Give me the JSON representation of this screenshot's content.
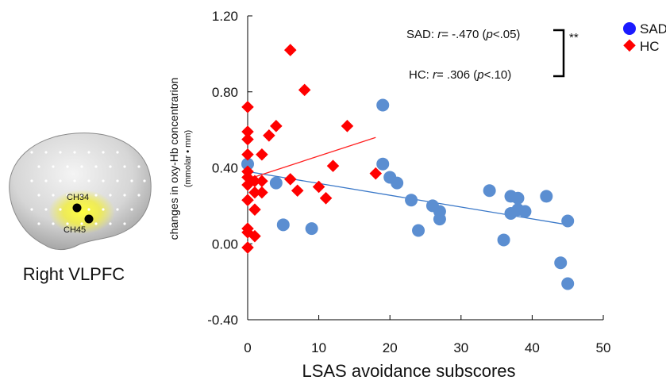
{
  "brain": {
    "channel_a": "CH34",
    "channel_b": "CH45",
    "caption": "Right VLPFC"
  },
  "chart_data": {
    "type": "scatter",
    "xlabel": "LSAS avoidance subscores",
    "ylabel": "changes in oxy-Hb concentrarion",
    "ylabel_unit": "(mmolar • mm)",
    "xlim": [
      0,
      50
    ],
    "ylim": [
      -0.4,
      1.2
    ],
    "xticks": [
      "0",
      "10",
      "20",
      "30",
      "40",
      "50"
    ],
    "yticks": [
      "1.20",
      "0.80",
      "0.40",
      "0.00",
      "-0.40"
    ],
    "ytick_values": [
      1.2,
      0.8,
      0.4,
      0.0,
      -0.4
    ],
    "xtick_values": [
      0,
      10,
      20,
      30,
      40,
      50
    ],
    "grid": false,
    "legend_position": "top-right, outside plot",
    "significance": "**",
    "stats": [
      {
        "prefix": "SAD: ",
        "r": "r",
        "mid": "= -.470 (",
        "p": "p",
        "suffix": "<.05)"
      },
      {
        "prefix": "HC: ",
        "r": "r",
        "mid": "= .306 (",
        "p": "p",
        "suffix": "<.10)"
      }
    ],
    "series": [
      {
        "name": "SAD",
        "marker": "circle",
        "color": "#5b8ed1",
        "legend_color": "#1a1aff",
        "points": [
          [
            0,
            0.42
          ],
          [
            4,
            0.32
          ],
          [
            5,
            0.1
          ],
          [
            9,
            0.08
          ],
          [
            19,
            0.73
          ],
          [
            19,
            0.42
          ],
          [
            20,
            0.35
          ],
          [
            21,
            0.32
          ],
          [
            23,
            0.23
          ],
          [
            24,
            0.07
          ],
          [
            26,
            0.2
          ],
          [
            27,
            0.17
          ],
          [
            27,
            0.13
          ],
          [
            34,
            0.28
          ],
          [
            36,
            0.02
          ],
          [
            37,
            0.25
          ],
          [
            37,
            0.16
          ],
          [
            38,
            0.24
          ],
          [
            38,
            0.18
          ],
          [
            39,
            0.17
          ],
          [
            42,
            0.25
          ],
          [
            44,
            -0.1
          ],
          [
            45,
            0.12
          ],
          [
            45,
            -0.21
          ]
        ],
        "fit": [
          [
            0,
            0.38
          ],
          [
            45,
            0.1
          ]
        ]
      },
      {
        "name": "HC",
        "marker": "diamond",
        "color": "#ff0000",
        "legend_color": "#ff0000",
        "points": [
          [
            0,
            0.72
          ],
          [
            0,
            0.59
          ],
          [
            0,
            0.55
          ],
          [
            0,
            0.47
          ],
          [
            0,
            0.38
          ],
          [
            0,
            0.35
          ],
          [
            0,
            0.31
          ],
          [
            0,
            0.23
          ],
          [
            0,
            0.08
          ],
          [
            0,
            0.06
          ],
          [
            0,
            -0.02
          ],
          [
            1,
            0.33
          ],
          [
            1,
            0.27
          ],
          [
            1,
            0.18
          ],
          [
            1,
            0.04
          ],
          [
            2,
            0.47
          ],
          [
            2,
            0.33
          ],
          [
            2,
            0.27
          ],
          [
            3,
            0.57
          ],
          [
            4,
            0.62
          ],
          [
            6,
            1.02
          ],
          [
            6,
            0.34
          ],
          [
            7,
            0.28
          ],
          [
            8,
            0.81
          ],
          [
            10,
            0.3
          ],
          [
            11,
            0.24
          ],
          [
            12,
            0.41
          ],
          [
            14,
            0.62
          ],
          [
            18,
            0.37
          ]
        ],
        "fit": [
          [
            0,
            0.34
          ],
          [
            18,
            0.56
          ]
        ]
      }
    ]
  }
}
